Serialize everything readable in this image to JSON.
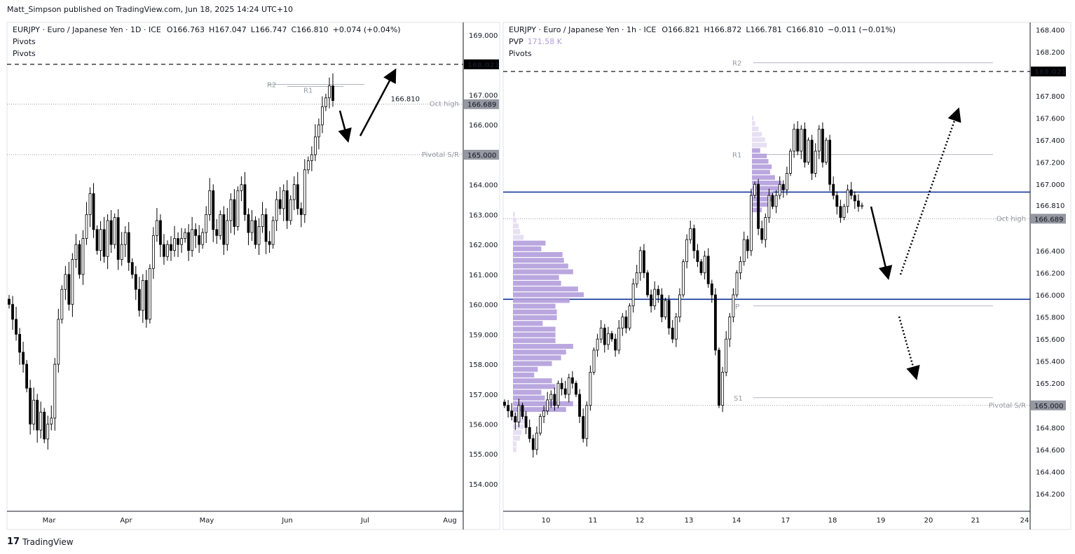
{
  "publish_note": "Matt_Simpson published on TradingView.com, Jun 18, 2025 14:24 UTC+10",
  "brand": "TradingView",
  "colors": {
    "up": "#ffffff",
    "down": "#000000",
    "pivot_line": "#b2b5be",
    "blue_level": "#0c3299",
    "vp_value_area": "#b39ddb",
    "vp_outside": "#e4ddf2",
    "label_box": "#9598a1"
  },
  "chart_data": [
    {
      "type": "candlestick",
      "symbol": "EURJPY",
      "legend": {
        "title": "EURJPY · Euro / Japanese Yen · 1D · ICE",
        "open": "O166.763",
        "high": "H167.047",
        "low": "L166.747",
        "close": "C166.810",
        "change": "+0.074 (+0.04%)",
        "indicators": [
          "Pivots",
          "Pivots"
        ]
      },
      "ylim": [
        153.5,
        169.4
      ],
      "y_ticks": [
        "169.000",
        "167.000",
        "166.000",
        "164.000",
        "163.000",
        "162.000",
        "161.000",
        "160.000",
        "159.000",
        "158.000",
        "157.000",
        "156.000",
        "155.000",
        "154.000"
      ],
      "x_ticks": [
        "Mar",
        "Apr",
        "May",
        "Jun",
        "Jul",
        "Aug"
      ],
      "closes": [
        160.0,
        159.5,
        159.0,
        158.4,
        158.0,
        157.2,
        156.0,
        156.8,
        155.8,
        156.4,
        155.5,
        156.0,
        156.2,
        158.0,
        159.5,
        160.5,
        161.0,
        160.0,
        161.5,
        162.0,
        161.0,
        162.2,
        163.0,
        163.7,
        162.5,
        161.8,
        162.5,
        161.6,
        162.8,
        162.0,
        162.9,
        161.5,
        162.0,
        162.4,
        161.4,
        161.0,
        160.5,
        159.8,
        160.8,
        159.5,
        161.2,
        162.3,
        162.8,
        162.0,
        161.6,
        162.0,
        161.8,
        162.2,
        162.0,
        162.2,
        162.4,
        161.8,
        162.5,
        162.3,
        162.0,
        162.4,
        163.0,
        163.8,
        162.5,
        162.3,
        163.0,
        162.0,
        162.8,
        163.5,
        162.6,
        163.8,
        164.0,
        163.0,
        162.4,
        162.8,
        162.0,
        162.6,
        163.0,
        162.1,
        162.0,
        162.8,
        163.5,
        163.2,
        163.8,
        162.8,
        163.5,
        164.0,
        163.2,
        163.0,
        164.5,
        164.8,
        165.0,
        165.6,
        166.0,
        166.6,
        166.9,
        167.3,
        166.81
      ],
      "levels": [
        {
          "label": "168.021",
          "price": 168.021,
          "style": "dashed",
          "box": "black"
        },
        {
          "label": "Oct high",
          "value_label": "166.689",
          "price": 166.689,
          "style": "dotted",
          "box": "gray"
        },
        {
          "label": "Pivotal S/R",
          "value_label": "165.000",
          "price": 165.0,
          "style": "dotted",
          "box": "gray"
        }
      ],
      "current_price": "166.810",
      "pivots": [
        {
          "label": "R2",
          "price": 167.35
        },
        {
          "label": "R1",
          "price": 167.28
        }
      ]
    },
    {
      "type": "candlestick",
      "symbol": "EURJPY",
      "legend": {
        "title": "EURJPY · Euro / Japanese Yen · 1h · ICE",
        "open": "O166.821",
        "high": "H166.872",
        "low": "L166.781",
        "close": "C166.810",
        "change": "−0.011 (−0.01%)",
        "pvp_label": "PVP",
        "pvp_value": "171.58 K",
        "indicators": [
          "Pivots"
        ]
      },
      "ylim": [
        164.1,
        168.48
      ],
      "y_ticks": [
        "168.400",
        "168.200",
        "167.800",
        "167.600",
        "167.400",
        "167.200",
        "167.000",
        "166.400",
        "166.200",
        "166.000",
        "165.800",
        "165.600",
        "165.400",
        "165.200",
        "164.800",
        "164.600",
        "164.400",
        "164.200"
      ],
      "x_ticks": [
        "10",
        "11",
        "12",
        "13",
        "14",
        "17",
        "18",
        "19",
        "20",
        "21",
        "24"
      ],
      "closes": [
        165.0,
        164.95,
        164.9,
        164.85,
        165.0,
        164.9,
        164.8,
        164.7,
        164.6,
        164.75,
        164.9,
        164.95,
        165.05,
        165.1,
        165.0,
        165.2,
        165.15,
        165.1,
        165.25,
        165.2,
        165.1,
        164.9,
        164.7,
        165.0,
        165.3,
        165.5,
        165.6,
        165.7,
        165.55,
        165.65,
        165.6,
        165.5,
        165.7,
        165.8,
        165.7,
        165.9,
        166.1,
        166.2,
        166.4,
        166.2,
        166.0,
        165.9,
        166.05,
        166.0,
        165.8,
        165.95,
        165.7,
        165.6,
        165.8,
        166.0,
        166.3,
        166.5,
        166.6,
        166.4,
        166.3,
        166.2,
        166.35,
        166.1,
        166.0,
        165.5,
        165.0,
        165.3,
        165.6,
        165.8,
        166.0,
        166.2,
        166.3,
        166.5,
        166.4,
        166.9,
        167.0,
        166.6,
        166.5,
        166.7,
        166.9,
        166.8,
        166.9,
        167.0,
        166.95,
        167.1,
        167.3,
        167.5,
        167.3,
        167.5,
        167.2,
        167.4,
        167.1,
        167.3,
        167.5,
        167.2,
        167.4,
        167.0,
        166.9,
        166.8,
        166.7,
        166.8,
        166.95,
        166.9,
        166.85,
        166.8,
        166.81
      ],
      "levels": [
        {
          "label": "168.021",
          "price": 168.021,
          "style": "dashed",
          "box": "black"
        },
        {
          "label": "Oct high",
          "value_label": "166.689",
          "price": 166.689,
          "style": "dotted",
          "box": "gray"
        },
        {
          "label": "Pivotal S/R",
          "value_label": "165.000",
          "price": 165.0,
          "style": "dotted",
          "box": "gray"
        }
      ],
      "current_price": "166.810",
      "pivots": [
        {
          "label": "R2",
          "price": 168.1
        },
        {
          "label": "R1",
          "price": 167.27
        },
        {
          "label": "P",
          "price": 165.9
        },
        {
          "label": "S1",
          "price": 165.07
        }
      ],
      "blue_levels": [
        166.93,
        165.96
      ],
      "volume_profiles": [
        {
          "price_top": 166.75,
          "price_bottom": 164.57,
          "value_area": [
            5,
            34
          ],
          "rows": [
            3,
            5,
            8,
            10,
            15,
            46,
            40,
            70,
            72,
            78,
            85,
            65,
            68,
            92,
            100,
            80,
            60,
            62,
            62,
            42,
            60,
            60,
            60,
            85,
            75,
            68,
            55,
            35,
            30,
            55,
            60,
            40,
            45,
            85,
            75,
            20,
            18,
            15,
            12,
            10,
            5,
            5
          ]
        },
        {
          "price_top": 167.62,
          "price_bottom": 166.74,
          "value_area": [
            6,
            17
          ],
          "rows": [
            5,
            10,
            20,
            30,
            40,
            45,
            25,
            45,
            50,
            60,
            55,
            70,
            90,
            100,
            65,
            60,
            50,
            30
          ]
        }
      ]
    }
  ]
}
